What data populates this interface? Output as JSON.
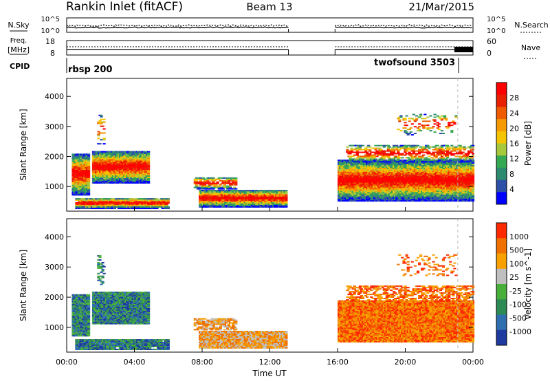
{
  "header": {
    "title": "Rankin Inlet (fitACF)",
    "beam": "Beam 13",
    "date": "21/Mar/2015"
  },
  "panels": {
    "nsky_label": "N.Sky",
    "nsky_ticks": [
      "10^5",
      "10^0"
    ],
    "nsearch_label": "N.Search",
    "nsearch_ticks": [
      "10^5",
      "10^0"
    ],
    "freq_label": "Freq.",
    "freq_unit": "[MHz]",
    "freq_ticks": [
      "18",
      "8"
    ],
    "nave_label": "Nave",
    "nave_ticks": [
      "60",
      "0"
    ],
    "cpid_label": "CPID",
    "cpid_modes": [
      "rbsp 200",
      "twofsound 3503"
    ]
  },
  "chart_data": [
    {
      "type": "heatmap",
      "name": "power",
      "ylabel": "Slant Range [km]",
      "ylim": [
        180,
        4600
      ],
      "yticks": [
        1000,
        2000,
        3000,
        4000
      ],
      "colorbar_label": "Power [dB]",
      "colorbar_ticks": [
        "28",
        "24",
        "20",
        "16",
        "12",
        "8",
        "4"
      ],
      "colors": [
        "#0000ff",
        "#2e4fa8",
        "#2e8a6e",
        "#34a853",
        "#a7c83a",
        "#f5c400",
        "#f59a00",
        "#f05a00",
        "#e82000",
        "#ff0000"
      ]
    },
    {
      "type": "heatmap",
      "name": "velocity",
      "ylabel": "Slant Range [km]",
      "ylim": [
        180,
        4600
      ],
      "yticks": [
        1000,
        2000,
        3000,
        4000
      ],
      "colorbar_label": "Velocity [m s^-1]",
      "colorbar_ticks": [
        "1000",
        "500",
        "100",
        "25",
        "-25",
        "-100",
        "-500",
        "-1000"
      ],
      "colors": [
        "#1f3a9f",
        "#2f6fb0",
        "#2e8a55",
        "#48b03a",
        "#bfbfbf",
        "#f7a000",
        "#f07000",
        "#ff2a00"
      ]
    }
  ],
  "x_axis": {
    "label": "Time UT",
    "ticks": [
      "00:00",
      "04:00",
      "08:00",
      "12:00",
      "16:00",
      "20:00",
      "00:00"
    ]
  }
}
